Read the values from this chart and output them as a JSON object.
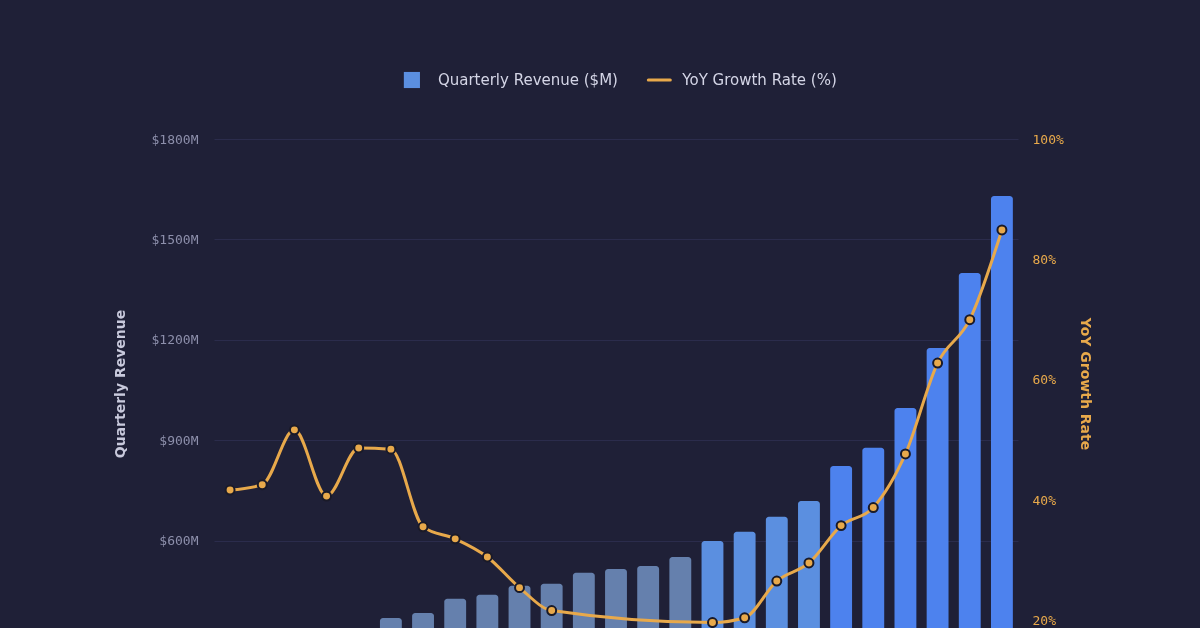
{
  "chart_data": {
    "type": "bar",
    "categories": [
      null,
      null,
      null,
      null,
      null,
      null,
      null,
      null,
      null,
      null,
      null,
      null,
      null,
      null,
      null,
      null,
      null,
      null,
      null,
      null,
      null,
      null,
      null,
      null,
      null
    ],
    "series": [
      {
        "name": "Quarterly Revenue ($M)",
        "color": "#5b8fe0",
        "colors": [
          "#6580ad",
          "#6580ad",
          "#6580ad",
          "#6580ad",
          "#6580ad",
          "#6580ad",
          "#6580ad",
          "#6580ad",
          "#6580ad",
          "#6580ad",
          "#6580ad",
          "#6580ad",
          "#6580ad",
          "#6580ad",
          "#6580ad",
          "#5b8fe0",
          "#5b8fe0",
          "#5b8fe0",
          "#5b8fe0",
          "#4d82ee",
          "#4d82ee",
          "#4d82ee",
          "#4d82ee",
          "#4d82ee",
          "#4d82ee"
        ],
        "values": [
          null,
          null,
          null,
          null,
          null,
          370,
          385,
          427,
          439,
          466,
          472,
          505,
          516,
          525,
          552,
          600,
          627,
          672,
          719,
          824,
          878,
          997,
          1176,
          1400,
          1630
        ]
      },
      {
        "name": "YoY Growth Rate (%)",
        "type": "line",
        "axis": "y2",
        "color": "#e8a94b",
        "values": [
          41.7,
          42.6,
          51.7,
          40.7,
          48.7,
          48.5,
          35.6,
          33.6,
          30.6,
          25.5,
          21.7,
          null,
          null,
          null,
          null,
          19.7,
          20.5,
          26.6,
          29.6,
          35.8,
          38.8,
          47.7,
          62.8,
          70,
          84.9
        ]
      }
    ],
    "ylabel": "Quarterly Revenue",
    "y2label": "YoY Growth Rate",
    "ylim": [
      340,
      1800
    ],
    "yticks": [
      {
        "value": 600,
        "label": "$600M"
      },
      {
        "value": 900,
        "label": "$900M"
      },
      {
        "value": 1200,
        "label": "$1200M"
      },
      {
        "value": 1500,
        "label": "$1500M"
      },
      {
        "value": 1800,
        "label": "$1800M"
      }
    ],
    "y2lim": [
      18.8,
      100
    ],
    "y2ticks": [
      {
        "value": 20,
        "label": "20%"
      },
      {
        "value": 40,
        "label": "40%"
      },
      {
        "value": 60,
        "label": "60%"
      },
      {
        "value": 80,
        "label": "80%"
      },
      {
        "value": 100,
        "label": "100%"
      }
    ],
    "grid": "y",
    "legend": "top",
    "marker": "circle",
    "line_style": "solid"
  }
}
